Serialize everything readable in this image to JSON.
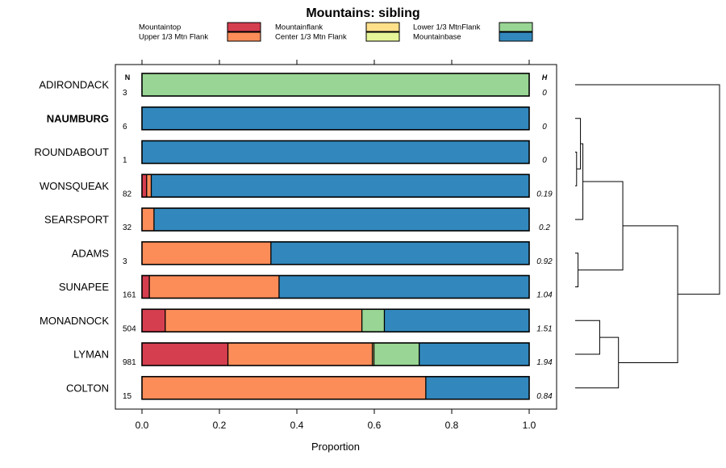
{
  "chart_data": {
    "type": "bar",
    "orientation": "horizontal-stacked",
    "title": "Mountains: sibling",
    "xlabel": "Proportion",
    "ylabel": "",
    "xlim": [
      0,
      1
    ],
    "xticks": [
      "0.0",
      "0.2",
      "0.4",
      "0.6",
      "0.8",
      "1.0"
    ],
    "xtick_values": [
      0,
      0.2,
      0.4,
      0.6,
      0.8,
      1.0
    ],
    "n_header": "N",
    "h_header": "H",
    "legend_position": "top",
    "categories": [
      "Mountaintop",
      "Upper 1/3 Mtn Flank",
      "Mountainflank",
      "Center 1/3 Mtn Flank",
      "Lower 1/3 MtnFlank",
      "Mountainbase"
    ],
    "colors": [
      "#d53e4f",
      "#fc8d59",
      "#fee08b",
      "#e6f598",
      "#99d594",
      "#3288bd"
    ],
    "rows": [
      {
        "label": "ADIRONDACK",
        "bold": false,
        "n": "3",
        "h": "0",
        "values": [
          0,
          0,
          0,
          0,
          1.0,
          0
        ]
      },
      {
        "label": "NAUMBURG",
        "bold": true,
        "n": "6",
        "h": "0",
        "values": [
          0,
          0,
          0,
          0,
          0,
          1.0
        ]
      },
      {
        "label": "ROUNDABOUT",
        "bold": false,
        "n": "1",
        "h": "0",
        "values": [
          0,
          0,
          0,
          0,
          0,
          1.0
        ]
      },
      {
        "label": "WONSQUEAK",
        "bold": false,
        "n": "82",
        "h": "0.19",
        "values": [
          0.012,
          0.012,
          0,
          0,
          0,
          0.976
        ]
      },
      {
        "label": "SEARSPORT",
        "bold": false,
        "n": "32",
        "h": "0.2",
        "values": [
          0,
          0.031,
          0,
          0,
          0,
          0.969
        ]
      },
      {
        "label": "ADAMS",
        "bold": false,
        "n": "3",
        "h": "0.92",
        "values": [
          0,
          0.333,
          0,
          0,
          0,
          0.667
        ]
      },
      {
        "label": "SUNAPEE",
        "bold": false,
        "n": "161",
        "h": "1.04",
        "values": [
          0.019,
          0.335,
          0,
          0,
          0,
          0.646
        ]
      },
      {
        "label": "MONADNOCK",
        "bold": false,
        "n": "504",
        "h": "1.51",
        "values": [
          0.06,
          0.508,
          0,
          0,
          0.058,
          0.374
        ]
      },
      {
        "label": "LYMAN",
        "bold": false,
        "n": "981",
        "h": "1.94",
        "values": [
          0.222,
          0.373,
          0.004,
          0,
          0.117,
          0.284
        ]
      },
      {
        "label": "COLTON",
        "bold": false,
        "n": "15",
        "h": "0.84",
        "values": [
          0,
          0.733,
          0,
          0,
          0,
          0.267
        ]
      }
    ],
    "dendrogram": {
      "leaves": [
        "ADIRONDACK",
        "NAUMBURG",
        "ROUNDABOUT",
        "WONSQUEAK",
        "SEARSPORT",
        "ADAMS",
        "SUNAPEE",
        "MONADNOCK",
        "LYMAN",
        "COLTON"
      ],
      "merges": [
        {
          "left": "ROUNDABOUT",
          "right": "WONSQUEAK",
          "height": 0.01
        },
        {
          "left": "NAUMBURG",
          "right": [
            "ROUNDABOUT",
            "WONSQUEAK"
          ],
          "height": 0.02
        },
        {
          "left": "SEARSPORT",
          "right": [
            "NAUMBURG",
            "ROUNDABOUT",
            "WONSQUEAK"
          ],
          "height": 0.02
        },
        {
          "left": "ADAMS",
          "right": "SUNAPEE",
          "height": 0.02
        },
        {
          "left": [
            "NAUMBURG",
            "ROUNDABOUT",
            "WONSQUEAK",
            "SEARSPORT"
          ],
          "right": [
            "ADAMS",
            "SUNAPEE"
          ],
          "height": 0.33
        },
        {
          "left": "MONADNOCK",
          "right": "LYMAN",
          "height": 0.17
        },
        {
          "left": [
            "MONADNOCK",
            "LYMAN"
          ],
          "right": "COLTON",
          "height": 0.3
        },
        {
          "left": [
            "NAUMBURG",
            "ROUNDABOUT",
            "WONSQUEAK",
            "SEARSPORT",
            "ADAMS",
            "SUNAPEE"
          ],
          "right": [
            "MONADNOCK",
            "LYMAN",
            "COLTON"
          ],
          "height": 0.71
        },
        {
          "left": "ADIRONDACK",
          "right": "rest",
          "height": 1.0
        }
      ]
    }
  }
}
